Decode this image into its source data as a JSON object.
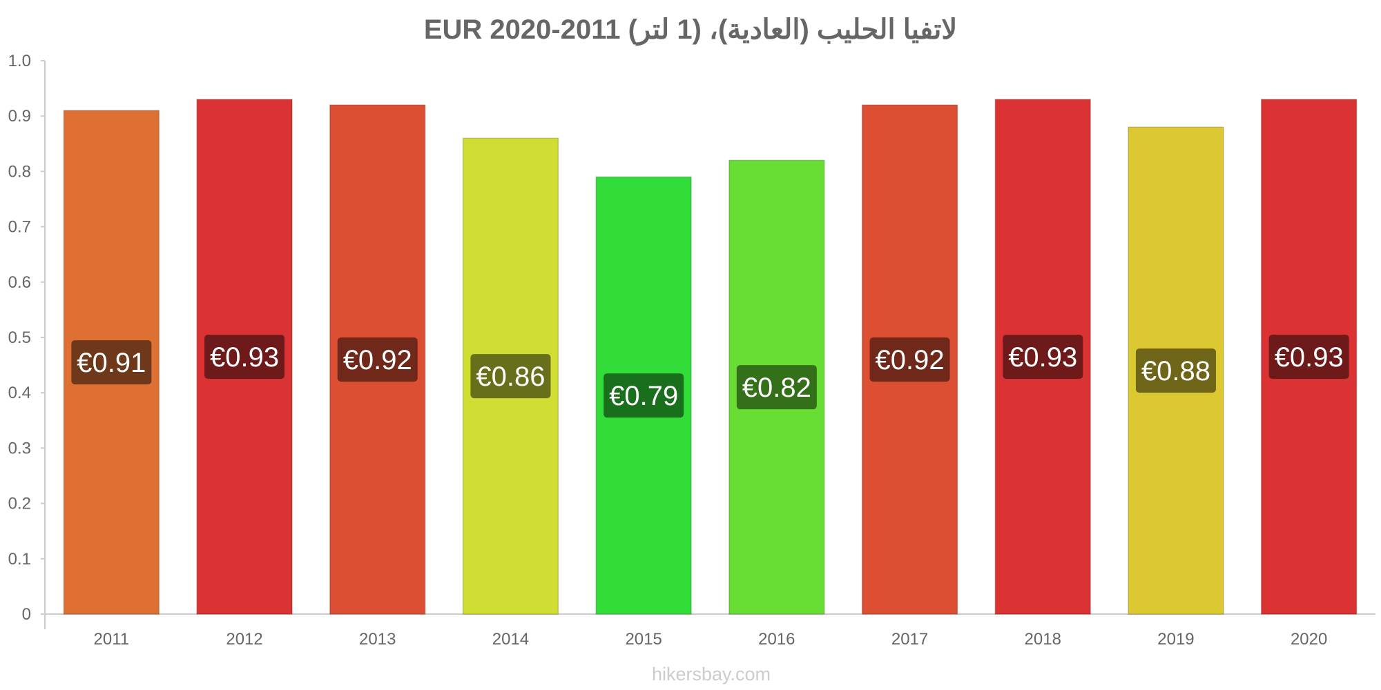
{
  "chart_data": {
    "type": "bar",
    "title": "لاتفيا الحليب (العادية)، (1 لتر) EUR 2020-2011",
    "xlabel": "",
    "ylabel": "",
    "ylim": [
      0,
      1.0
    ],
    "yticks": [
      "0",
      "0.1",
      "0.2",
      "0.3",
      "0.4",
      "0.5",
      "0.6",
      "0.7",
      "0.8",
      "0.9",
      "1.0"
    ],
    "ytick_values": [
      0,
      0.1,
      0.2,
      0.3,
      0.4,
      0.5,
      0.6,
      0.7,
      0.8,
      0.9,
      1.0
    ],
    "categories": [
      "2011",
      "2012",
      "2013",
      "2014",
      "2015",
      "2016",
      "2017",
      "2018",
      "2019",
      "2020"
    ],
    "values": [
      0.91,
      0.93,
      0.92,
      0.86,
      0.79,
      0.82,
      0.92,
      0.93,
      0.88,
      0.93
    ],
    "data_labels": [
      "€0.91",
      "€0.93",
      "€0.92",
      "€0.86",
      "€0.79",
      "€0.82",
      "€0.92",
      "€0.93",
      "€0.88",
      "€0.93"
    ],
    "bar_colors": [
      "#de7033",
      "#db3333",
      "#dd4f33",
      "#d0dd33",
      "#33dd39",
      "#68dd33",
      "#dd4f33",
      "#db3333",
      "#dcc932",
      "#db3333"
    ],
    "label_bg_colors": [
      "#6f381a",
      "#6e1a1a",
      "#6f281a",
      "#686f1a",
      "#1a6f1d",
      "#346f1a",
      "#6f281a",
      "#6e1a1a",
      "#6e6519",
      "#6e1a1a"
    ],
    "grid": false,
    "legend": "none"
  },
  "watermark": "hikersbay.com"
}
